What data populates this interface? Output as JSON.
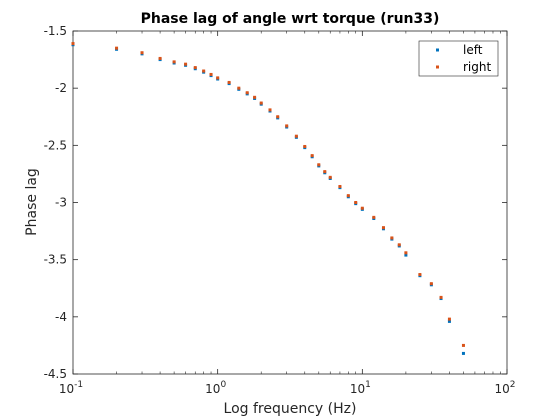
{
  "chart_data": {
    "type": "scatter",
    "title": "Phase lag of angle wrt torque (run33)",
    "xlabel": "Log frequency (Hz)",
    "ylabel": "Phase lag",
    "x_scale": "log",
    "xlim": [
      0.1,
      100
    ],
    "ylim": [
      -4.5,
      -1.5
    ],
    "x_ticks": [
      0.1,
      1,
      10,
      100
    ],
    "x_tick_labels": [
      [
        "10",
        "-1"
      ],
      [
        "10",
        "0"
      ],
      [
        "10",
        "1"
      ],
      [
        "10",
        "2"
      ]
    ],
    "y_ticks": [
      -1.5,
      -2,
      -2.5,
      -3,
      -3.5,
      -4,
      -4.5
    ],
    "y_tick_labels": [
      "-1.5",
      "-2",
      "-2.5",
      "-3",
      "-3.5",
      "-4",
      "-4.5"
    ],
    "grid": false,
    "legend_position": "top-right",
    "series": [
      {
        "name": "left",
        "color": "#0072BD",
        "points": [
          [
            0.1,
            -1.62
          ],
          [
            0.2,
            -1.66
          ],
          [
            0.3,
            -1.7
          ],
          [
            0.4,
            -1.75
          ],
          [
            0.5,
            -1.78
          ],
          [
            0.6,
            -1.8
          ],
          [
            0.7,
            -1.83
          ],
          [
            0.8,
            -1.86
          ],
          [
            0.9,
            -1.89
          ],
          [
            1.0,
            -1.92
          ],
          [
            1.2,
            -1.96
          ],
          [
            1.4,
            -2.01
          ],
          [
            1.6,
            -2.05
          ],
          [
            1.8,
            -2.09
          ],
          [
            2.0,
            -2.14
          ],
          [
            2.3,
            -2.2
          ],
          [
            2.6,
            -2.26
          ],
          [
            3.0,
            -2.34
          ],
          [
            3.5,
            -2.43
          ],
          [
            4.0,
            -2.52
          ],
          [
            4.5,
            -2.6
          ],
          [
            5.0,
            -2.68
          ],
          [
            5.5,
            -2.74
          ],
          [
            6.0,
            -2.79
          ],
          [
            7.0,
            -2.87
          ],
          [
            8.0,
            -2.95
          ],
          [
            9.0,
            -3.01
          ],
          [
            10.0,
            -3.06
          ],
          [
            12.0,
            -3.14
          ],
          [
            14.0,
            -3.23
          ],
          [
            16.0,
            -3.32
          ],
          [
            18.0,
            -3.38
          ],
          [
            20.0,
            -3.46
          ],
          [
            25.0,
            -3.64
          ],
          [
            30.0,
            -3.72
          ],
          [
            35.0,
            -3.84
          ],
          [
            40.0,
            -4.04
          ],
          [
            50.0,
            -4.32
          ]
        ]
      },
      {
        "name": "right",
        "color": "#D95319",
        "points": [
          [
            0.1,
            -1.61
          ],
          [
            0.2,
            -1.65
          ],
          [
            0.3,
            -1.69
          ],
          [
            0.4,
            -1.74
          ],
          [
            0.5,
            -1.77
          ],
          [
            0.6,
            -1.79
          ],
          [
            0.7,
            -1.82
          ],
          [
            0.8,
            -1.85
          ],
          [
            0.9,
            -1.88
          ],
          [
            1.0,
            -1.91
          ],
          [
            1.2,
            -1.95
          ],
          [
            1.4,
            -2.0
          ],
          [
            1.6,
            -2.04
          ],
          [
            1.8,
            -2.08
          ],
          [
            2.0,
            -2.13
          ],
          [
            2.3,
            -2.19
          ],
          [
            2.6,
            -2.25
          ],
          [
            3.0,
            -2.33
          ],
          [
            3.5,
            -2.42
          ],
          [
            4.0,
            -2.51
          ],
          [
            4.5,
            -2.59
          ],
          [
            5.0,
            -2.67
          ],
          [
            5.5,
            -2.73
          ],
          [
            6.0,
            -2.78
          ],
          [
            7.0,
            -2.86
          ],
          [
            8.0,
            -2.94
          ],
          [
            9.0,
            -3.0
          ],
          [
            10.0,
            -3.05
          ],
          [
            12.0,
            -3.13
          ],
          [
            14.0,
            -3.22
          ],
          [
            16.0,
            -3.31
          ],
          [
            18.0,
            -3.37
          ],
          [
            20.0,
            -3.44
          ],
          [
            25.0,
            -3.63
          ],
          [
            30.0,
            -3.71
          ],
          [
            35.0,
            -3.83
          ],
          [
            40.0,
            -4.02
          ],
          [
            50.0,
            -4.25
          ]
        ]
      }
    ]
  }
}
